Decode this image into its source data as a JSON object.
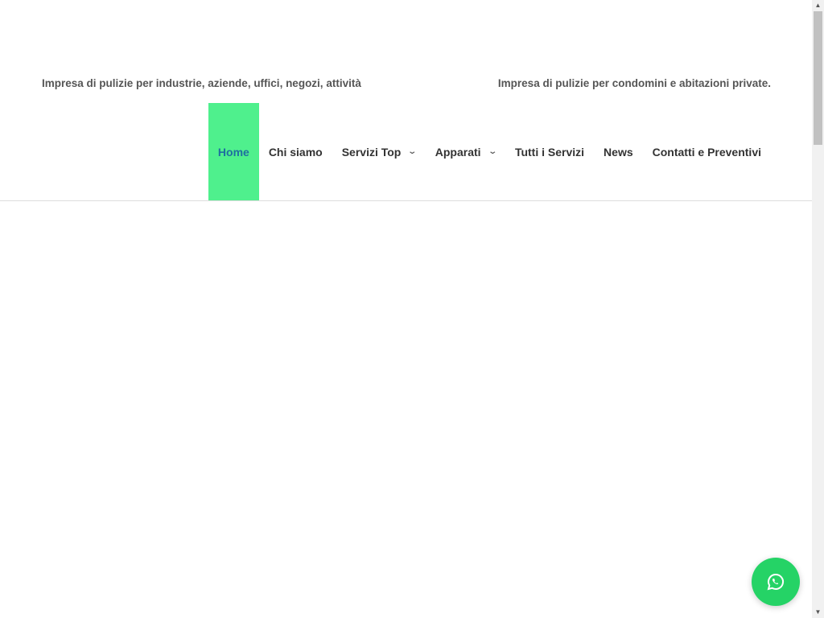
{
  "header": {
    "tagline_left": "Impresa di pulizie per industrie, aziende, uffici, negozi, attività",
    "tagline_right": "Impresa di pulizie per condomini e abitazioni private."
  },
  "nav": {
    "items": [
      {
        "label": "Home",
        "active": true
      },
      {
        "label": "Chi siamo"
      },
      {
        "label": "Servizi Top",
        "dropdown": true
      },
      {
        "label": "Apparati",
        "dropdown": true
      },
      {
        "label": "Tutti i Servizi"
      },
      {
        "label": "News"
      },
      {
        "label": "Contatti e Preventivi"
      }
    ],
    "chevron": "⌄"
  },
  "colors": {
    "active_bg": "#4ff08d",
    "active_text": "#1f6fa0",
    "whatsapp": "#25d366"
  },
  "whatsapp_button": {
    "icon": "whatsapp-icon"
  }
}
